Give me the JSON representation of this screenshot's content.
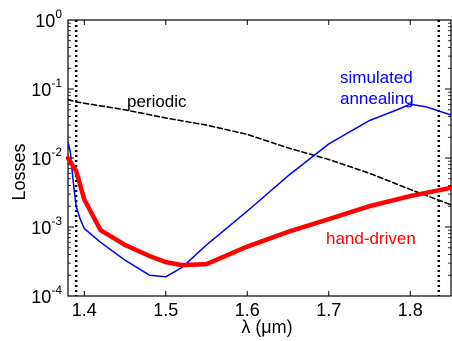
{
  "chart_data": {
    "type": "line",
    "title": "",
    "xlabel": "λ (μm)",
    "ylabel": "Losses",
    "xlim": [
      1.38,
      1.85
    ],
    "ylim": [
      0.0001,
      1
    ],
    "yscale": "log",
    "x_ticks": [
      1.4,
      1.5,
      1.6,
      1.7,
      1.8
    ],
    "x_tick_labels": [
      "1.4",
      "1.5",
      "1.6",
      "1.7",
      "1.8"
    ],
    "y_ticks": [
      {
        "value": 1,
        "base": "10",
        "exp": "0"
      },
      {
        "value": 0.1,
        "base": "10",
        "exp": "-1"
      },
      {
        "value": 0.01,
        "base": "10",
        "exp": "-2"
      },
      {
        "value": 0.001,
        "base": "10",
        "exp": "-3"
      },
      {
        "value": 0.0001,
        "base": "10",
        "exp": "-4"
      }
    ],
    "grid": false,
    "vertical_lines": [
      1.39,
      1.835
    ],
    "series": [
      {
        "name": "periodic",
        "color": "#000000",
        "style": "dashed",
        "x": [
          1.38,
          1.39,
          1.45,
          1.5,
          1.55,
          1.6,
          1.65,
          1.7,
          1.75,
          1.8,
          1.85
        ],
        "y": [
          0.07,
          0.065,
          0.05,
          0.038,
          0.03,
          0.022,
          0.014,
          0.0095,
          0.006,
          0.0035,
          0.0021
        ]
      },
      {
        "name": "simulated annealing",
        "color": "#0000ff",
        "style": "solid",
        "x": [
          1.38,
          1.383,
          1.386,
          1.39,
          1.395,
          1.4,
          1.42,
          1.45,
          1.48,
          1.5,
          1.52,
          1.55,
          1.6,
          1.65,
          1.7,
          1.75,
          1.78,
          1.8,
          1.82,
          1.85
        ],
        "y": [
          0.017,
          0.012,
          0.005,
          0.002,
          0.0013,
          0.00095,
          0.0006,
          0.00033,
          0.0002,
          0.00019,
          0.00026,
          0.00055,
          0.0017,
          0.0055,
          0.016,
          0.035,
          0.048,
          0.06,
          0.055,
          0.042
        ]
      },
      {
        "name": "hand-driven",
        "color": "#ff0000",
        "style": "solid",
        "x": [
          1.38,
          1.39,
          1.4,
          1.42,
          1.45,
          1.48,
          1.5,
          1.52,
          1.55,
          1.6,
          1.65,
          1.7,
          1.75,
          1.8,
          1.85
        ],
        "y": [
          0.01,
          0.0065,
          0.0025,
          0.0009,
          0.00055,
          0.00038,
          0.00031,
          0.00028,
          0.00029,
          0.00052,
          0.00085,
          0.0013,
          0.002,
          0.0028,
          0.0037
        ]
      }
    ],
    "annotations": [
      {
        "text": "periodic",
        "series": "periodic"
      },
      {
        "text": "simulated",
        "series": "simulated annealing"
      },
      {
        "text": "annealing",
        "series": "simulated annealing"
      },
      {
        "text": "hand-driven",
        "series": "hand-driven"
      }
    ]
  }
}
